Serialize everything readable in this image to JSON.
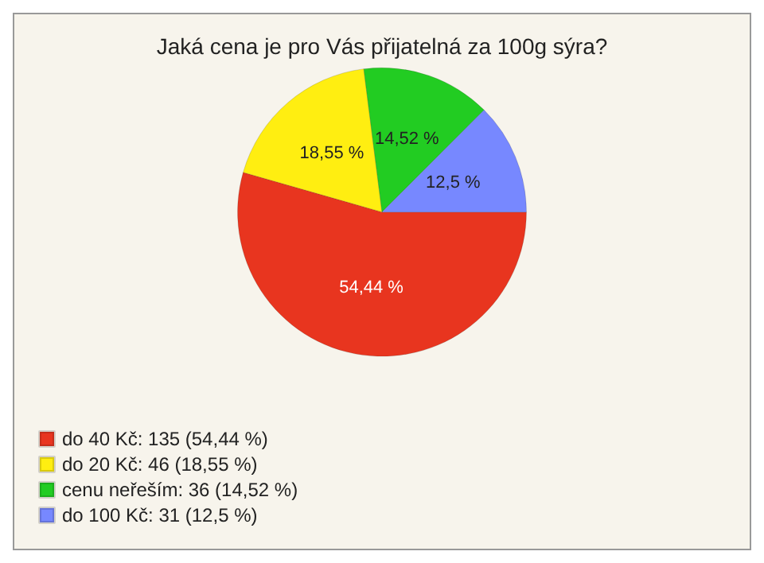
{
  "chart_data": {
    "type": "pie",
    "title": "Jaká cena je pro Vás přijatelná za 100g sýra?",
    "categories": [
      "do 40 Kč: 135 (54,44 %)",
      "do 20 Kč: 46 (18,55 %)",
      "cenu neřeším: 36 (14,52 %)",
      "do 100 Kč: 31 (12,5 %)"
    ],
    "values": [
      54.44,
      18.55,
      14.52,
      12.5
    ],
    "value_labels": [
      "54,44 %",
      "18,55 %",
      "14,52 %",
      "12,5 %"
    ],
    "colors": [
      "#e8351f",
      "#ffee11",
      "#22cc22",
      "#7788ff"
    ],
    "legend": "bottom left"
  }
}
